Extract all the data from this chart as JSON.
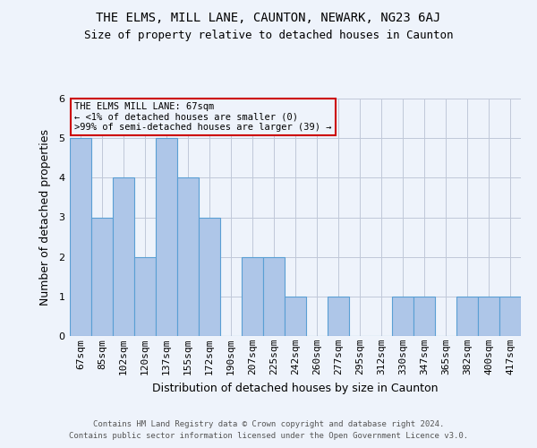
{
  "title1": "THE ELMS, MILL LANE, CAUNTON, NEWARK, NG23 6AJ",
  "title2": "Size of property relative to detached houses in Caunton",
  "xlabel": "Distribution of detached houses by size in Caunton",
  "ylabel": "Number of detached properties",
  "footer1": "Contains HM Land Registry data © Crown copyright and database right 2024.",
  "footer2": "Contains public sector information licensed under the Open Government Licence v3.0.",
  "annotation_title": "THE ELMS MILL LANE: 67sqm",
  "annotation_line1": "← <1% of detached houses are smaller (0)",
  "annotation_line2": ">99% of semi-detached houses are larger (39) →",
  "categories": [
    "67sqm",
    "85sqm",
    "102sqm",
    "120sqm",
    "137sqm",
    "155sqm",
    "172sqm",
    "190sqm",
    "207sqm",
    "225sqm",
    "242sqm",
    "260sqm",
    "277sqm",
    "295sqm",
    "312sqm",
    "330sqm",
    "347sqm",
    "365sqm",
    "382sqm",
    "400sqm",
    "417sqm"
  ],
  "values": [
    5,
    3,
    4,
    2,
    5,
    4,
    3,
    0,
    2,
    2,
    1,
    0,
    1,
    0,
    0,
    1,
    1,
    0,
    1,
    1,
    1
  ],
  "bar_color": "#aec6e8",
  "bar_edge_color": "#5a9fd4",
  "annotation_box_edge_color": "#cc0000",
  "background_color": "#eef3fb",
  "grid_color": "#c0c8d8",
  "ylim": [
    0,
    6
  ],
  "yticks": [
    0,
    1,
    2,
    3,
    4,
    5,
    6
  ],
  "title1_fontsize": 10,
  "title2_fontsize": 9,
  "xlabel_fontsize": 9,
  "ylabel_fontsize": 9,
  "tick_fontsize": 8,
  "ann_fontsize": 7.5,
  "footer_fontsize": 6.5
}
